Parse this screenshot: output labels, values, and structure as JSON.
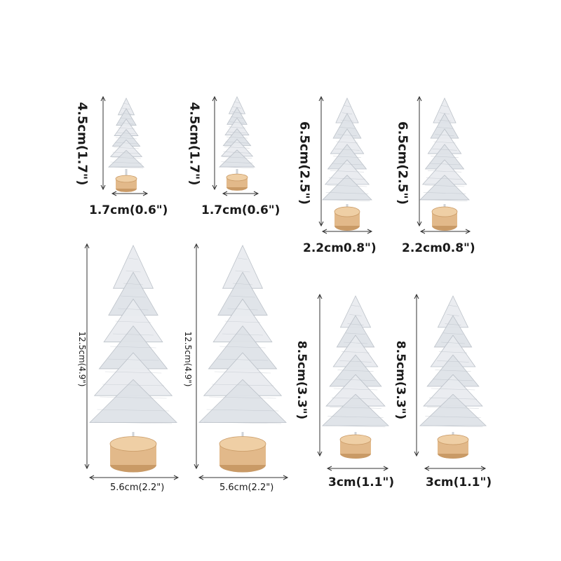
{
  "products": [
    {
      "height_label": "4.5cm(1.7\")",
      "width_label": "1.7cm(0.6\")"
    },
    {
      "height_label": "4.5cm(1.7\")",
      "width_label": "1.7cm(0.6\")"
    },
    {
      "height_label": "6.5cm(2.5\")",
      "width_label": "2.2cm0.8\")"
    },
    {
      "height_label": "6.5cm(2.5\")",
      "width_label": "2.2cm0.8\")"
    },
    {
      "height_label": "12.5cm(4.9\")",
      "width_label": "5.6cm(2.2\")"
    },
    {
      "height_label": "12.5cm(4.9\")",
      "width_label": "5.6cm(2.2\")"
    },
    {
      "height_label": "8.5cm(3.3\")",
      "width_label": "3cm(1.1\")"
    },
    {
      "height_label": "8.5cm(3.3\")",
      "width_label": "3cm(1.1\")"
    }
  ],
  "colors": {
    "foliage": "#dfe3e8",
    "foliage_shade": "#b8bec6",
    "trunk_base": "#e2b98a",
    "trunk_base_shade": "#c99a66",
    "dim_line": "#333333"
  }
}
